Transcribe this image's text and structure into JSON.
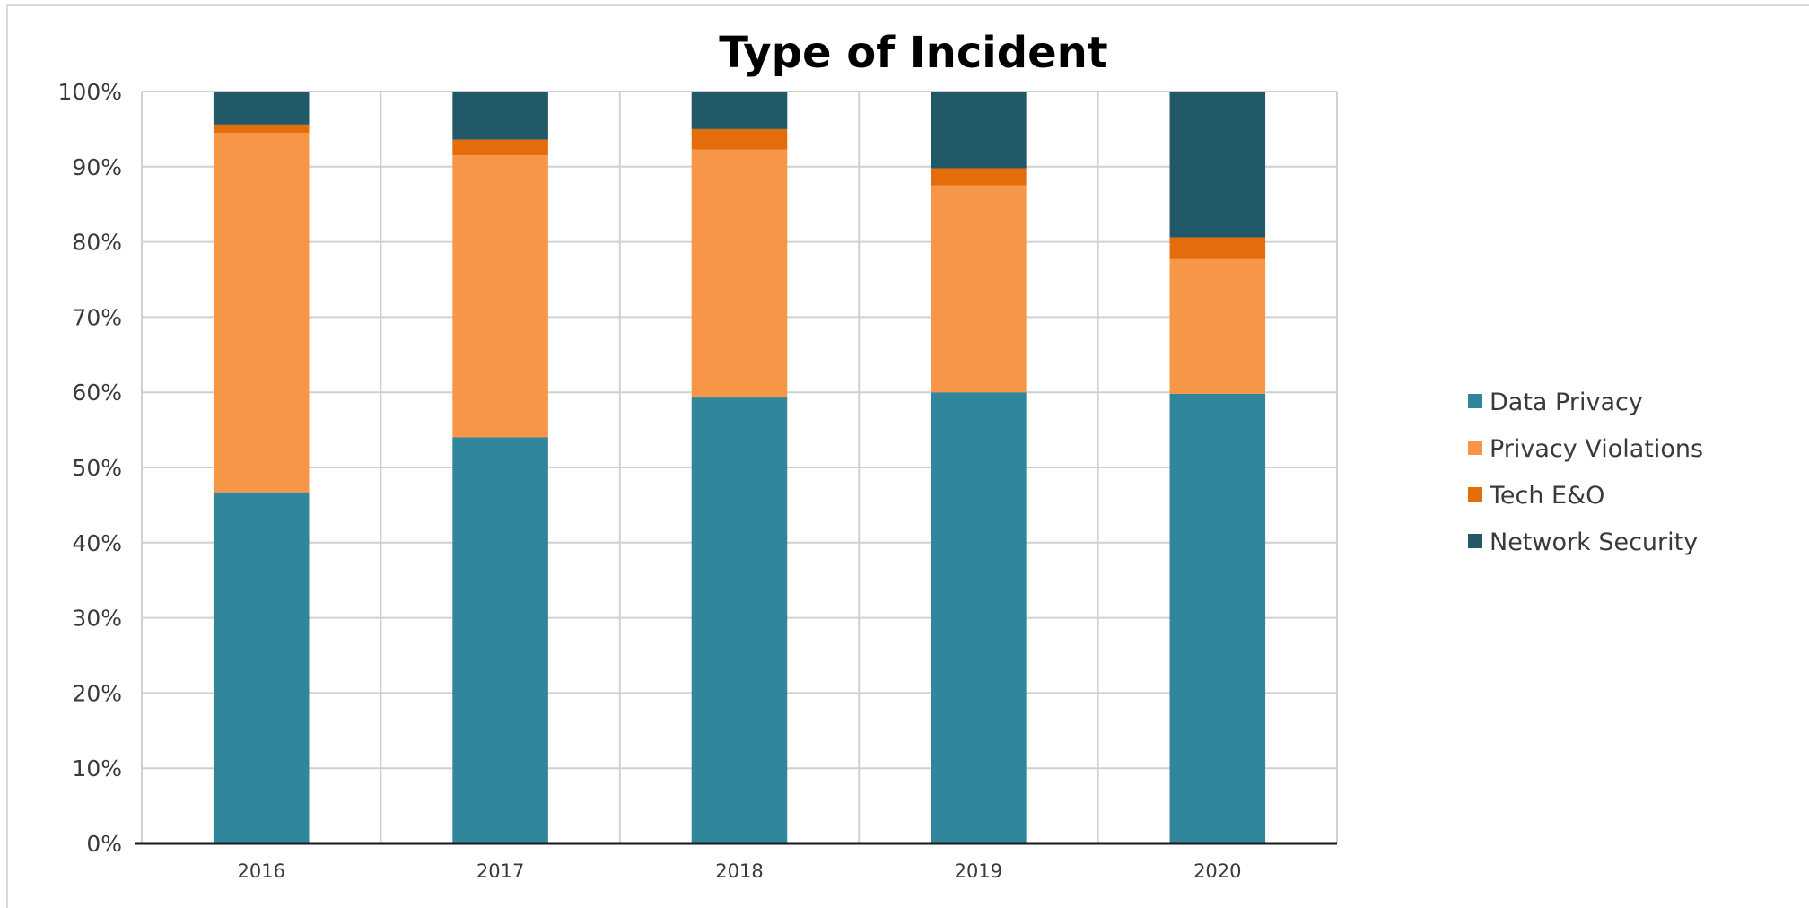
{
  "chart_data": {
    "type": "bar",
    "stacked": true,
    "percent": true,
    "title": "Type of Incident",
    "xlabel": "",
    "ylabel": "",
    "categories": [
      "2016",
      "2017",
      "2018",
      "2019",
      "2020"
    ],
    "ylim": [
      0,
      100
    ],
    "yticks": [
      "0%",
      "10%",
      "20%",
      "30%",
      "40%",
      "50%",
      "60%",
      "70%",
      "80%",
      "90%",
      "100%"
    ],
    "series": [
      {
        "name": "Data Privacy",
        "color": "#31869b",
        "values": [
          46.7,
          54.0,
          59.3,
          60.0,
          59.8
        ]
      },
      {
        "name": "Privacy Violations",
        "color": "#f79646",
        "values": [
          47.8,
          37.5,
          33.0,
          27.5,
          17.9
        ]
      },
      {
        "name": "Tech E&O",
        "color": "#e46c0a",
        "values": [
          1.1,
          2.1,
          2.7,
          2.3,
          2.9
        ]
      },
      {
        "name": "Network Security",
        "color": "#215968",
        "values": [
          4.4,
          6.4,
          5.0,
          10.2,
          19.4
        ]
      }
    ],
    "grid": true,
    "legend_position": "right"
  }
}
